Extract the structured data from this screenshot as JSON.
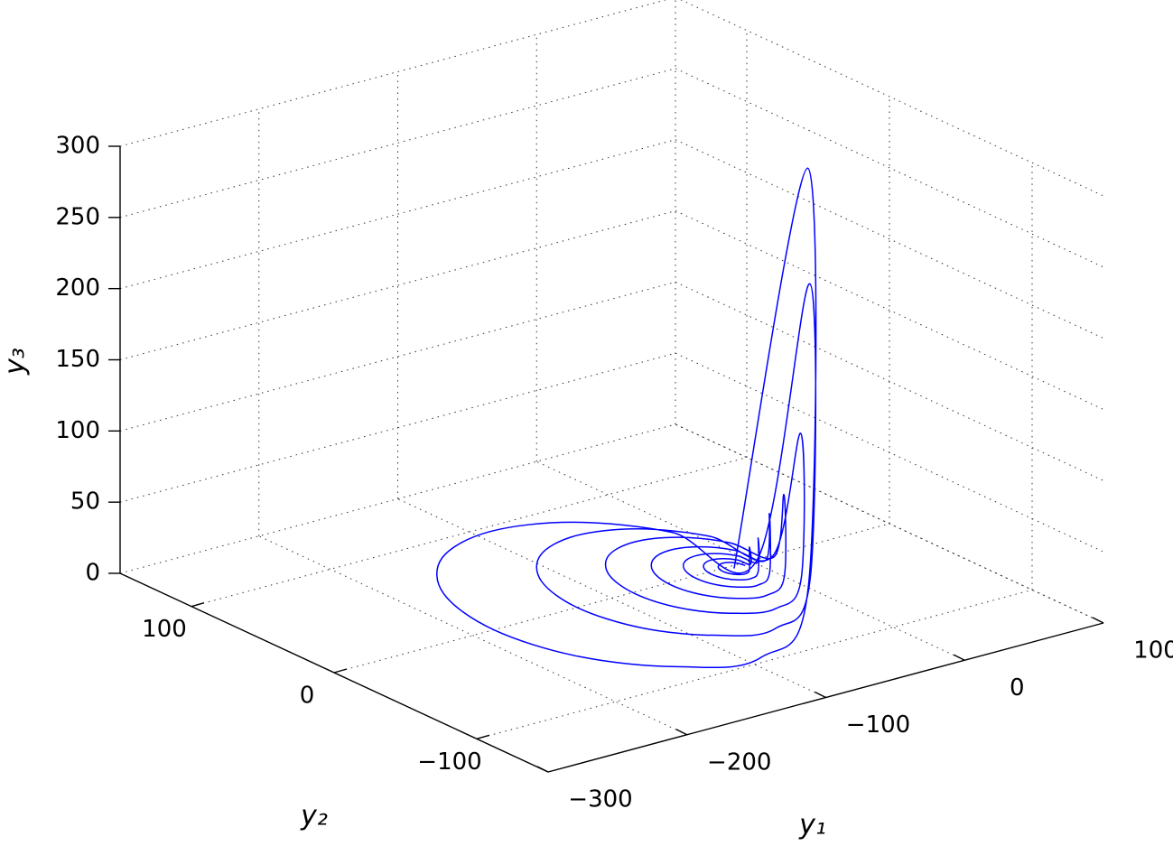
{
  "chart_data": {
    "type": "line3d",
    "xlabel": "y₁",
    "ylabel": "y₂",
    "zlabel": "y₃",
    "xlim": [
      -300,
      100
    ],
    "ylim": [
      -150,
      150
    ],
    "zlim": [
      0,
      300
    ],
    "xticks": [
      {
        "value": -300,
        "label": "−300"
      },
      {
        "value": -200,
        "label": "−200"
      },
      {
        "value": -100,
        "label": "−100"
      },
      0,
      100
    ],
    "yticks": [
      {
        "value": -100,
        "label": "−100"
      },
      0,
      100
    ],
    "zticks": [
      0,
      50,
      100,
      150,
      200,
      250,
      300
    ],
    "grid": true,
    "series": [
      {
        "color": "#0000ff",
        "x": [
          -7,
          -8.1,
          -11,
          -15,
          -19,
          -21.9,
          -23,
          -21.9,
          -19,
          -15,
          -11,
          -8.1,
          -3,
          -4.9,
          -10,
          -17,
          -24,
          -29.1,
          -31,
          -29.1,
          -24,
          -17,
          -10,
          -4.9,
          2,
          -0.9,
          -9,
          -20,
          -31,
          -39.1,
          -42,
          -39.1,
          -31,
          -20,
          -9,
          -0.9,
          8,
          3.4,
          -9,
          -26,
          -43,
          -55.4,
          -60,
          -55.4,
          -43,
          -26,
          -9,
          3.4,
          15,
          8.3,
          -10,
          -35,
          -60,
          -78.3,
          -85,
          -78.3,
          -60,
          -35,
          -10,
          8.3,
          15,
          5.6,
          -20,
          -55,
          -90,
          -115.6,
          -125,
          -115.6,
          -90,
          -55,
          -20,
          5.6,
          5,
          -7.7,
          -42.5,
          -90,
          -137.5,
          -172.3,
          -185,
          -172.3,
          -137.5,
          -90,
          -42.5,
          -7.7,
          -15
        ],
        "y": [
          -3,
          1,
          3.9,
          5,
          3.9,
          1,
          -3,
          -7,
          -9.9,
          -11,
          -9.9,
          -7,
          -3,
          4,
          9.1,
          11,
          9.1,
          4,
          -3,
          -10,
          -15.1,
          -17,
          -15.1,
          -10,
          -3,
          8,
          16.1,
          19,
          16.1,
          8,
          -3,
          -14,
          -22.1,
          -25,
          -22.1,
          -14,
          -3,
          14,
          26.4,
          31,
          26.4,
          14,
          -3,
          -20,
          -32.4,
          -37,
          -32.4,
          -20,
          -2,
          23,
          41.3,
          48,
          41.3,
          23,
          -2,
          -27,
          -45.3,
          -52,
          -45.3,
          -27,
          -1,
          34,
          59.6,
          69,
          59.6,
          34,
          -1,
          -36,
          -61.6,
          -71,
          -61.6,
          -36,
          0,
          47.5,
          82.3,
          95,
          82.3,
          47.5,
          0,
          -47.5,
          -82.3,
          -95,
          -82.3,
          -47.5,
          -3
        ],
        "z": [
          0,
          0,
          0,
          0,
          0,
          0,
          0,
          0,
          0,
          0,
          1.8,
          15,
          0,
          0,
          0,
          0,
          0,
          0,
          0,
          0,
          0,
          0,
          2.6,
          22,
          0,
          0,
          0,
          0,
          0,
          0,
          0,
          0,
          0,
          0,
          4.8,
          40,
          0,
          0,
          0,
          0,
          0,
          0,
          0,
          0,
          0,
          0,
          6.6,
          55,
          0,
          0,
          0,
          0,
          0,
          0,
          0,
          0,
          0,
          0,
          12,
          100,
          0,
          0,
          0,
          0,
          0,
          0,
          0,
          0,
          0,
          0,
          25,
          210,
          0,
          0,
          0,
          0,
          0,
          0,
          0,
          0,
          0,
          0,
          36,
          300,
          0
        ]
      }
    ]
  }
}
